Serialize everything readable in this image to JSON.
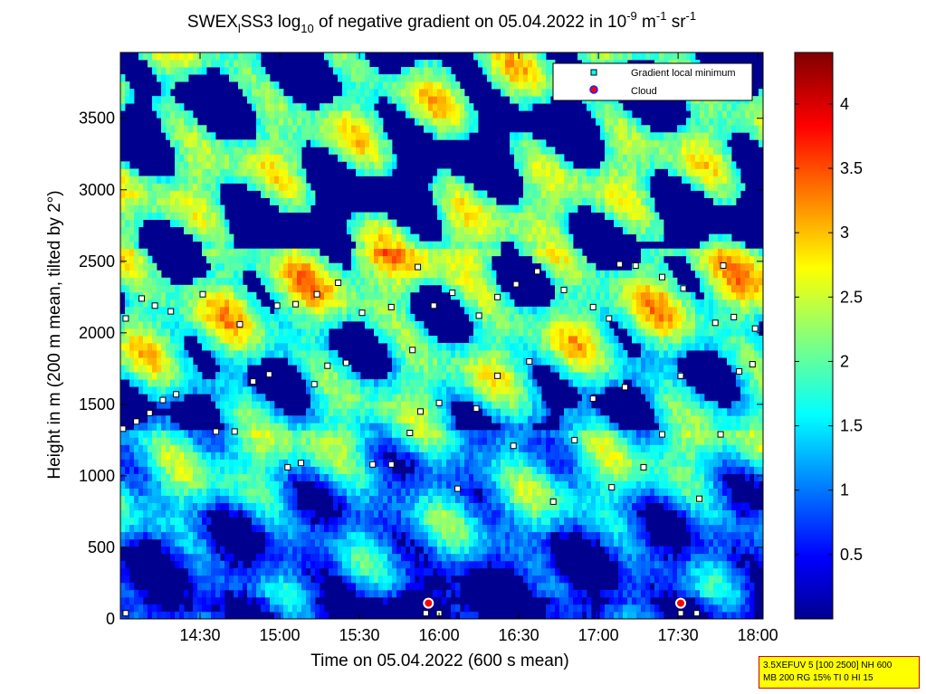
{
  "chart_data": {
    "type": "heatmap",
    "title": {
      "prefix": "SWEX",
      "sub1": "l",
      "mid1": "SS3 log",
      "sub2": "10",
      "mid2": " of negative gradient on 05.04.2022 in 10",
      "sup1": "-9",
      "mid3": " m",
      "sup2": "-1",
      "mid4": " sr",
      "sup3": "-1"
    },
    "xlabel": "Time on 05.04.2022 (600 s mean)",
    "ylabel": "Height in m (200 m mean, tilted by 2°)",
    "xlim": [
      "14:00",
      "18:02"
    ],
    "ylim": [
      0,
      3960
    ],
    "x_ticks": [
      "14:30",
      "15:00",
      "15:30",
      "16:00",
      "16:30",
      "17:00",
      "17:30",
      "18:00"
    ],
    "y_ticks": [
      0,
      500,
      1000,
      1500,
      2000,
      2500,
      3000,
      3500
    ],
    "colorbar": {
      "colormap": "jet",
      "range": [
        0,
        4.4
      ],
      "ticks": [
        0.5,
        1,
        1.5,
        2,
        2.5,
        3,
        3.5,
        4
      ]
    },
    "legend": {
      "position": "top-right",
      "entries": [
        {
          "label": "Gradient local minimum",
          "marker": "square",
          "color": "#00ffff"
        },
        {
          "label": "Cloud",
          "marker": "circle",
          "color": "#ff0000"
        }
      ]
    },
    "series": [
      {
        "name": "Gradient local minimum",
        "points": [
          [
            "14:01",
            1330
          ],
          [
            "14:06",
            1380
          ],
          [
            "14:11",
            1440
          ],
          [
            "14:16",
            1530
          ],
          [
            "14:21",
            1570
          ],
          [
            "14:36",
            1310
          ],
          [
            "14:43",
            1310
          ],
          [
            "14:50",
            1660
          ],
          [
            "14:56",
            1710
          ],
          [
            "15:03",
            1060
          ],
          [
            "15:08",
            1090
          ],
          [
            "15:13",
            1640
          ],
          [
            "15:18",
            1770
          ],
          [
            "15:25",
            1790
          ],
          [
            "15:35",
            1080
          ],
          [
            "15:42",
            1080
          ],
          [
            "15:49",
            1300
          ],
          [
            "15:53",
            1450
          ],
          [
            "16:00",
            1510
          ],
          [
            "16:07",
            910
          ],
          [
            "16:14",
            1470
          ],
          [
            "16:22",
            1700
          ],
          [
            "16:28",
            1210
          ],
          [
            "16:34",
            1800
          ],
          [
            "16:43",
            820
          ],
          [
            "16:51",
            1250
          ],
          [
            "16:58",
            1540
          ],
          [
            "17:05",
            920
          ],
          [
            "17:10",
            1620
          ],
          [
            "17:17",
            1060
          ],
          [
            "17:24",
            1290
          ],
          [
            "17:31",
            1700
          ],
          [
            "17:38",
            840
          ],
          [
            "17:46",
            1290
          ],
          [
            "17:53",
            1730
          ],
          [
            "17:58",
            1780
          ],
          [
            "14:02",
            2100
          ],
          [
            "14:08",
            2240
          ],
          [
            "14:13",
            2190
          ],
          [
            "14:19",
            2150
          ],
          [
            "14:31",
            2270
          ],
          [
            "14:45",
            2060
          ],
          [
            "14:59",
            2190
          ],
          [
            "15:06",
            2200
          ],
          [
            "15:14",
            2270
          ],
          [
            "15:22",
            2350
          ],
          [
            "15:31",
            2140
          ],
          [
            "15:42",
            2180
          ],
          [
            "15:50",
            1880
          ],
          [
            "15:58",
            2190
          ],
          [
            "16:05",
            2280
          ],
          [
            "16:15",
            2120
          ],
          [
            "16:22",
            2250
          ],
          [
            "16:29",
            2340
          ],
          [
            "16:37",
            2430
          ],
          [
            "16:47",
            2300
          ],
          [
            "16:58",
            2180
          ],
          [
            "17:04",
            2100
          ],
          [
            "17:14",
            2470
          ],
          [
            "17:24",
            2390
          ],
          [
            "17:32",
            2310
          ],
          [
            "17:44",
            2070
          ],
          [
            "17:51",
            2110
          ],
          [
            "17:59",
            2030
          ],
          [
            "15:52",
            2460
          ],
          [
            "17:08",
            2480
          ],
          [
            "17:47",
            2470
          ],
          [
            "14:02",
            40
          ],
          [
            "15:55",
            40
          ],
          [
            "16:00",
            40
          ],
          [
            "17:31",
            40
          ],
          [
            "17:37",
            40
          ]
        ]
      },
      {
        "name": "Cloud",
        "points": [
          [
            "15:56",
            110
          ],
          [
            "17:31",
            110
          ]
        ]
      }
    ]
  },
  "info_box": {
    "line1": "3.5XEFUV 5 [100 2500] NH 600",
    "line2": "MB 200 RG 15% TI 0 HI 15"
  },
  "colors": {
    "background": "#ffffff",
    "axes": "#000000"
  }
}
